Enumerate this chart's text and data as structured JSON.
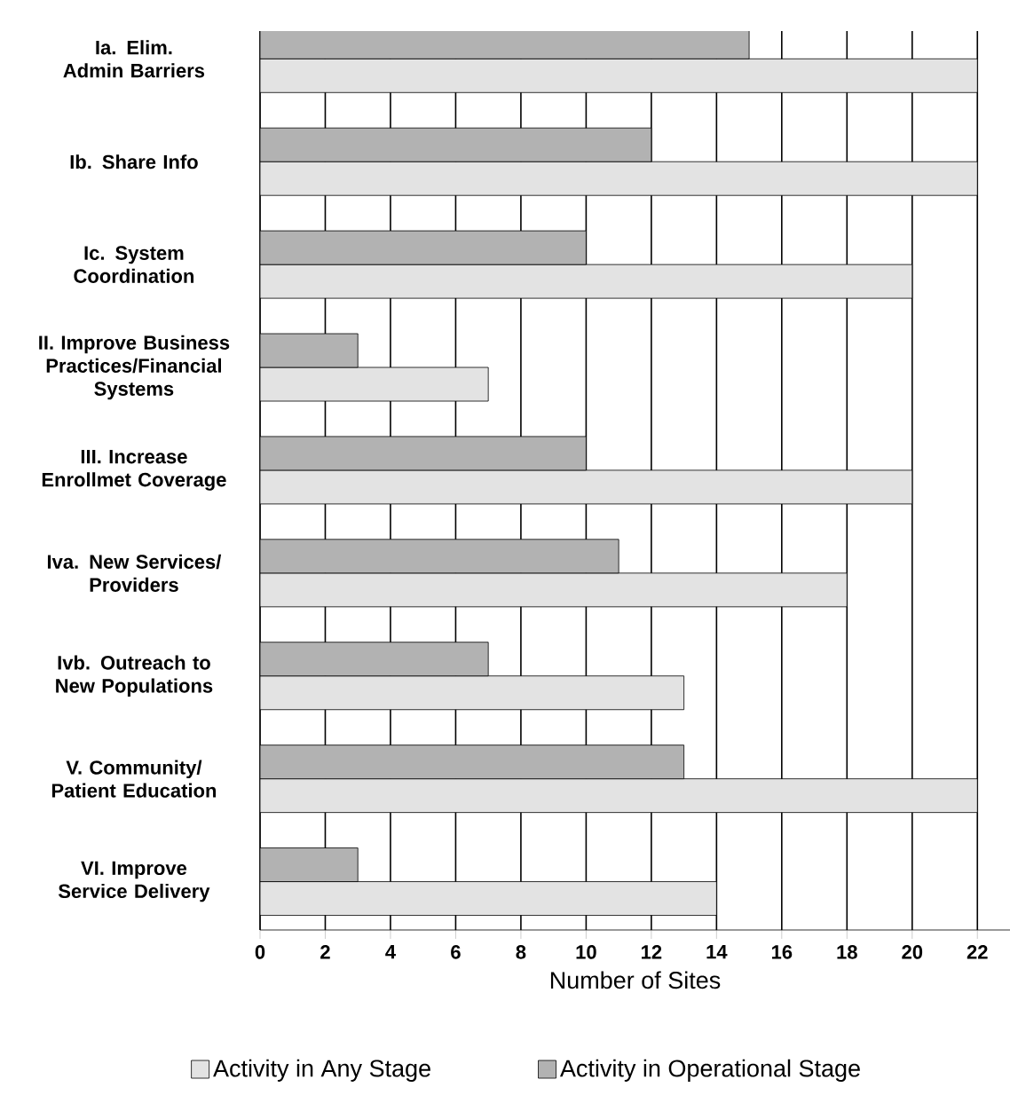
{
  "chart_data": {
    "type": "bar",
    "orientation": "horizontal",
    "xlabel": "Number of Sites",
    "categories": [
      "Ia. Elim. Admin Barriers",
      "Ib. Share Info",
      "Ic. System Coordination",
      "II. Improve Business Practices/Financial Systems",
      "III. Increase Enrollmet Coverage",
      "Iva. New Services/ Providers",
      "Ivb. Outreach to New Populations",
      "V. Community/ Patient Education",
      "VI. Improve Service Delivery"
    ],
    "series": [
      {
        "name": "Activity in Any Stage",
        "color": "#e3e3e3",
        "values": [
          22,
          22,
          20,
          7,
          20,
          18,
          13,
          22,
          14
        ]
      },
      {
        "name": "Activity in Operational Stage",
        "color": "#b2b2b2",
        "values": [
          15,
          12,
          10,
          3,
          10,
          11,
          7,
          13,
          3
        ]
      }
    ],
    "xlim": [
      0,
      23
    ],
    "xticks": [
      0,
      2,
      4,
      6,
      8,
      10,
      12,
      14,
      16,
      18,
      20,
      22
    ],
    "grid": "x",
    "legend": "bottom"
  }
}
